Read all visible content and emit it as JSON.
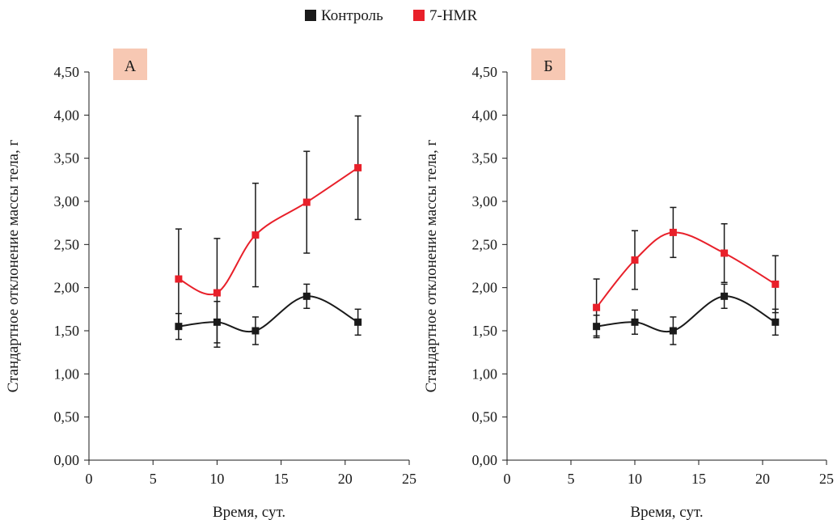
{
  "legend": [
    {
      "label": "Контроль",
      "color": "#1a1a1a"
    },
    {
      "label": "7-HMR",
      "color": "#e8202a"
    }
  ],
  "chart_data": [
    {
      "type": "line",
      "panel_label": "А",
      "xlabel": "Время, сут.",
      "ylabel": "Стандартное отклонение массы тела, г",
      "xlim": [
        0,
        25
      ],
      "ylim": [
        0,
        4.5
      ],
      "x_ticks": [
        "0",
        "5",
        "10",
        "15",
        "20",
        "25"
      ],
      "y_ticks": [
        "0,00",
        "0,50",
        "1,00",
        "1,50",
        "2,00",
        "2,50",
        "3,00",
        "3,50",
        "4,00",
        "4,50"
      ],
      "x": [
        7,
        10,
        13,
        17,
        21
      ],
      "series": [
        {
          "name": "Контроль",
          "color": "#1a1a1a",
          "values": [
            1.55,
            1.6,
            1.5,
            1.9,
            1.6
          ],
          "error": [
            0.15,
            0.24,
            0.16,
            0.14,
            0.15
          ]
        },
        {
          "name": "7-HMR",
          "color": "#e8202a",
          "values": [
            2.1,
            1.94,
            2.61,
            2.99,
            3.39
          ],
          "error": [
            0.58,
            0.63,
            0.6,
            0.59,
            0.6
          ]
        }
      ],
      "grid": false,
      "legend_position": "top-center"
    },
    {
      "type": "line",
      "panel_label": "Б",
      "xlabel": "Время, сут.",
      "ylabel": "Стандартное отклонение массы тела, г",
      "xlim": [
        0,
        25
      ],
      "ylim": [
        0,
        4.5
      ],
      "x_ticks": [
        "0",
        "5",
        "10",
        "15",
        "20",
        "25"
      ],
      "y_ticks": [
        "0,00",
        "0,50",
        "1,00",
        "1,50",
        "2,00",
        "2,50",
        "3,00",
        "3,50",
        "4,00",
        "4,50"
      ],
      "x": [
        7,
        10,
        13,
        17,
        21
      ],
      "series": [
        {
          "name": "Контроль",
          "color": "#1a1a1a",
          "values": [
            1.55,
            1.6,
            1.5,
            1.9,
            1.6
          ],
          "error": [
            0.13,
            0.14,
            0.16,
            0.14,
            0.15
          ]
        },
        {
          "name": "7-HMR",
          "color": "#e8202a",
          "values": [
            1.77,
            2.32,
            2.64,
            2.4,
            2.04
          ],
          "error": [
            0.33,
            0.34,
            0.29,
            0.34,
            0.33
          ]
        }
      ],
      "grid": false,
      "legend_position": "top-center"
    }
  ]
}
